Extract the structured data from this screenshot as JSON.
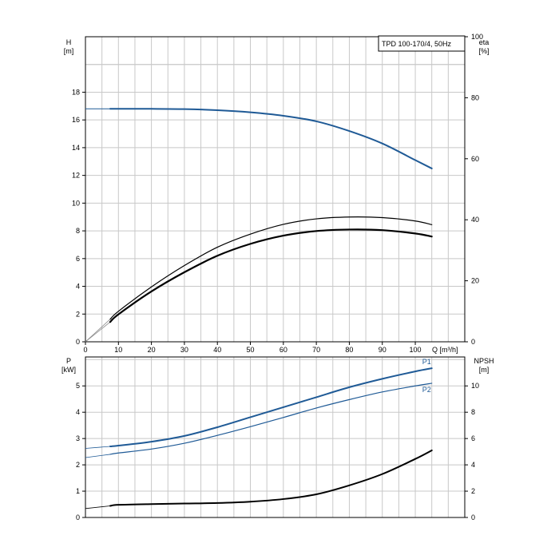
{
  "chart_data": [
    {
      "type": "line",
      "title": "TPD 100-170/4, 50Hz",
      "x_axis": {
        "label": "Q [m³/h]",
        "ticks": [
          "0",
          "10",
          "20",
          "30",
          "40",
          "50",
          "60",
          "70",
          "80",
          "90",
          "100"
        ],
        "range": [
          0,
          115
        ]
      },
      "y_left": {
        "label_line1": "H",
        "label_line2": "[m]",
        "ticks": [
          "0",
          "2",
          "4",
          "6",
          "8",
          "10",
          "12",
          "14",
          "16",
          "18"
        ],
        "range": [
          0,
          22
        ]
      },
      "y_right": {
        "label_line1": "eta",
        "label_line2": "[%]",
        "ticks": [
          "0",
          "20",
          "40",
          "60",
          "80",
          "100"
        ],
        "range": [
          0,
          100
        ]
      },
      "grid": true,
      "series": [
        {
          "axis": "left",
          "color": "#1f5a96",
          "width": 2,
          "x": [
            7.5,
            10,
            20,
            30,
            40,
            50,
            60,
            70,
            80,
            90,
            100,
            105
          ],
          "y": [
            16.8,
            16.8,
            16.8,
            16.78,
            16.7,
            16.55,
            16.3,
            15.9,
            15.2,
            14.3,
            13.1,
            12.5
          ]
        },
        {
          "axis": "right",
          "color": "#000000",
          "width": 1.2,
          "dashed_extension": true,
          "x": [
            7.5,
            10,
            20,
            30,
            40,
            50,
            60,
            70,
            80,
            90,
            100,
            105
          ],
          "y": [
            7.4,
            10,
            18,
            25,
            31,
            35.3,
            38.5,
            40.3,
            40.9,
            40.7,
            39.6,
            38.4
          ]
        },
        {
          "axis": "right",
          "color": "#000000",
          "width": 2.2,
          "dashed_extension": true,
          "x": [
            7.5,
            10,
            20,
            30,
            40,
            50,
            60,
            70,
            80,
            90,
            100,
            105
          ],
          "y": [
            6.5,
            9,
            16.5,
            22.8,
            28.2,
            32.1,
            34.8,
            36.3,
            36.8,
            36.6,
            35.5,
            34.5
          ]
        }
      ]
    },
    {
      "type": "line",
      "x_axis": {
        "ticks": [],
        "range": [
          0,
          115
        ]
      },
      "y_left": {
        "label_line1": "P",
        "label_line2": "[kW]",
        "ticks": [
          "0",
          "1",
          "2",
          "3",
          "4",
          "5"
        ],
        "range": [
          0,
          6.1
        ]
      },
      "y_right": {
        "label_line1": "NPSH",
        "label_line2": "[m]",
        "ticks": [
          "0",
          "2",
          "4",
          "6",
          "8",
          "10"
        ],
        "range": [
          0,
          12.2
        ]
      },
      "grid": true,
      "series": [
        {
          "name": "P1",
          "axis": "left",
          "color": "#1f5a96",
          "width": 2,
          "x": [
            7.5,
            10,
            20,
            30,
            40,
            50,
            60,
            70,
            80,
            90,
            100,
            105
          ],
          "y": [
            2.7,
            2.73,
            2.88,
            3.1,
            3.43,
            3.81,
            4.19,
            4.57,
            4.95,
            5.27,
            5.55,
            5.67
          ]
        },
        {
          "name": "P2",
          "axis": "left",
          "color": "#1f5a96",
          "width": 1.2,
          "x": [
            7.5,
            10,
            20,
            30,
            40,
            50,
            60,
            70,
            80,
            90,
            100,
            105
          ],
          "y": [
            2.4,
            2.45,
            2.6,
            2.82,
            3.12,
            3.45,
            3.8,
            4.16,
            4.48,
            4.77,
            5.0,
            5.1
          ]
        },
        {
          "axis": "right",
          "color": "#000000",
          "width": 2,
          "x": [
            7.5,
            10,
            20,
            30,
            40,
            50,
            60,
            70,
            80,
            90,
            100,
            105
          ],
          "y": [
            0.88,
            0.96,
            1.02,
            1.06,
            1.1,
            1.2,
            1.4,
            1.76,
            2.44,
            3.3,
            4.45,
            5.1
          ]
        }
      ]
    }
  ]
}
